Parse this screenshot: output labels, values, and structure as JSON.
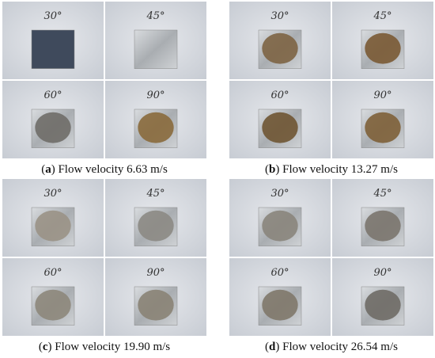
{
  "panels": [
    {
      "label": "a",
      "caption": "Flow velocity 6.63 m/s",
      "photos": [
        "30°",
        "45°",
        "60°",
        "90°"
      ]
    },
    {
      "label": "b",
      "caption": "Flow velocity 13.27 m/s",
      "photos": [
        "30°",
        "45°",
        "60°",
        "90°"
      ]
    },
    {
      "label": "c",
      "caption": "Flow velocity 19.90 m/s",
      "photos": [
        "30°",
        "45°",
        "60°",
        "90°"
      ]
    },
    {
      "label": "d",
      "caption": "Flow velocity 26.54 m/s",
      "photos": [
        "30°",
        "45°",
        "60°",
        "90°"
      ]
    }
  ]
}
